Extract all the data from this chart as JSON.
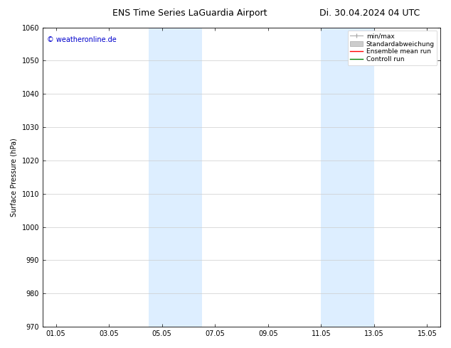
{
  "title_left": "ENS Time Series LaGuardia Airport",
  "title_right": "Di. 30.04.2024 04 UTC",
  "ylabel": "Surface Pressure (hPa)",
  "ylim": [
    970,
    1060
  ],
  "yticks": [
    970,
    980,
    990,
    1000,
    1010,
    1020,
    1030,
    1040,
    1050,
    1060
  ],
  "xtick_labels": [
    "01.05",
    "03.05",
    "05.05",
    "07.05",
    "09.05",
    "11.05",
    "13.05",
    "15.05"
  ],
  "xtick_positions": [
    0,
    2,
    4,
    6,
    8,
    10,
    12,
    14
  ],
  "xlim": [
    -0.5,
    14.5
  ],
  "shaded_regions": [
    {
      "start": 3.5,
      "end": 5.5
    },
    {
      "start": 10.0,
      "end": 12.0
    }
  ],
  "shade_color": "#ddeeff",
  "watermark": "© weatheronline.de",
  "watermark_color": "#0000cc",
  "legend_entries": [
    "min/max",
    "Standardabweichung",
    "Ensemble mean run",
    "Controll run"
  ],
  "legend_color_minmax": "#aaaaaa",
  "legend_color_std": "#cccccc",
  "legend_color_ens": "#ff0000",
  "legend_color_ctrl": "#008000",
  "background_color": "#ffffff",
  "grid_color": "#cccccc",
  "title_fontsize": 9,
  "axis_label_fontsize": 7,
  "tick_fontsize": 7,
  "legend_fontsize": 6.5,
  "watermark_fontsize": 7
}
